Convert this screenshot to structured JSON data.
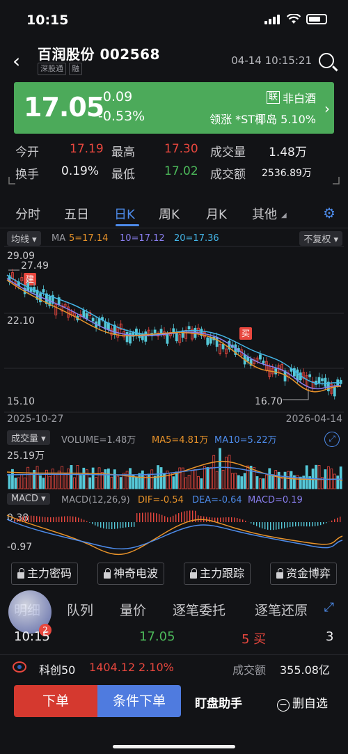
{
  "status_bar": {
    "time": "10:15"
  },
  "header": {
    "stock_name": "百润股份 002568",
    "tags": [
      "深股通",
      "融"
    ],
    "datetime": "04-14 10:15:21"
  },
  "quote": {
    "price": "17.05",
    "change": "-0.09",
    "change_pct": "-0.53%",
    "sector_badge": "联",
    "sector": "非白酒",
    "leader": "领涨 *ST椰岛 5.10%",
    "bg_color": "#4caa5a"
  },
  "stats": {
    "open_label": "今开",
    "open": "17.19",
    "high_label": "最高",
    "high": "17.30",
    "volume_label": "成交量",
    "volume": "1.48万",
    "turnover_label": "换手",
    "turnover": "0.19%",
    "low_label": "最低",
    "low": "17.02",
    "amount_label": "成交额",
    "amount": "2536.89万"
  },
  "tabs": [
    "分时",
    "五日",
    "日K",
    "周K",
    "月K",
    "其他"
  ],
  "active_tab": "日K",
  "kline": {
    "indicator_select": "均线",
    "ma_label": "MA",
    "ma5": "5=17.14",
    "ma10": "10=17.12",
    "ma20": "20=17.36",
    "adjust_select": "不复权",
    "y_top": "29.09",
    "y_mid": "22.10",
    "y_bottom": "15.10",
    "max_price": "27.49",
    "min_price": "16.70",
    "marker_build": "建",
    "marker_buy": "买",
    "date_start": "2025-10-27",
    "date_end": "2026-04-14"
  },
  "volume_panel": {
    "select": "成交量",
    "volume": "VOLUME=1.48万",
    "ma5": "MA5=4.81万",
    "ma10": "MA10=5.22万",
    "y_top": "25.19万"
  },
  "macd_panel": {
    "select": "MACD",
    "params": "MACD(12,26,9)",
    "dif": "DIF=-0.54",
    "dea": "DEA=-0.64",
    "macd": "MACD=0.19",
    "y_top": "0.38",
    "y_bottom": "-0.97"
  },
  "tool_buttons": [
    "主力密码",
    "神奇电波",
    "主力跟踪",
    "资金博弈"
  ],
  "detail_tabs": [
    "明细",
    "队列",
    "量价",
    "逐笔委托",
    "逐笔还原"
  ],
  "trade_row": {
    "time": "10:15",
    "price": "17.05",
    "side": "5 买",
    "count": "3"
  },
  "index_row": {
    "name": "科创50",
    "value": "1404.12",
    "pct": "2.10%",
    "amount_label": "成交额",
    "amount": "355.08亿"
  },
  "avatar_badge": "2",
  "bottom_bar": {
    "order": "下单",
    "conditional_order": "条件下单",
    "assistant": "盯盘助手",
    "remove": "删自选"
  },
  "colors": {
    "up": "#e8473e",
    "down": "#4cb95a",
    "accent": "#4d8bea"
  }
}
